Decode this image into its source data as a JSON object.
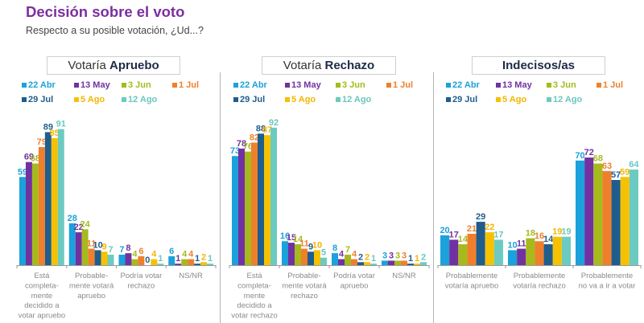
{
  "header": {
    "title": "Decisión sobre el voto",
    "subtitle": "Respecto a su posible votación, ¿Ud...?"
  },
  "series_colors": {
    "22 Abr": "#1ba1db",
    "13 May": "#7131a1",
    "3 Jun": "#a6ba1e",
    "1 Jul": "#f07f2b",
    "29 Jul": "#1f5d8d",
    "5 Ago": "#f6c100",
    "12 Ago": "#6ccbc0"
  },
  "panels": [
    {
      "title_normal": "Votaría ",
      "title_bold": "Apruebo"
    },
    {
      "title_normal": "Votaría ",
      "title_bold": "Rechazo"
    },
    {
      "title_normal": "",
      "title_bold": "Indecisos/as"
    }
  ],
  "chart_data": [
    {
      "type": "bar",
      "title": "Votaría Apruebo",
      "unit": "%",
      "categories": [
        "Está completamente decidido a votar apruebo",
        "Probablemente votará apruebo",
        "Podría votar rechazo",
        "NS/NR"
      ],
      "category_lines": [
        [
          "Está",
          "completa-",
          "mente",
          "decidido a",
          "votar apruebo"
        ],
        [
          "Probable-",
          "mente votará",
          "apruebo"
        ],
        [
          "Podría votar",
          "rechazo"
        ],
        [
          "NS/NR"
        ]
      ],
      "legend": "top",
      "ylim": [
        0,
        100
      ],
      "grid": false,
      "series": [
        {
          "name": "22 Abr",
          "values": [
            59,
            28,
            7,
            6
          ]
        },
        {
          "name": "13 May",
          "values": [
            69,
            22,
            8,
            1
          ]
        },
        {
          "name": "3 Jun",
          "values": [
            68,
            24,
            4,
            4
          ]
        },
        {
          "name": "1 Jul",
          "values": [
            79,
            11,
            6,
            4
          ]
        },
        {
          "name": "29 Jul",
          "values": [
            89,
            10,
            0,
            1
          ]
        },
        {
          "name": "5 Ago",
          "values": [
            85,
            9,
            4,
            2
          ]
        },
        {
          "name": "12 Ago",
          "values": [
            91,
            7,
            1,
            1
          ]
        }
      ]
    },
    {
      "type": "bar",
      "title": "Votaría Rechazo",
      "unit": "%",
      "categories": [
        "Está completamente decidido a votar rechazo",
        "Probablemente votará rechazo",
        "Podría votar apruebo",
        "NS/NR"
      ],
      "category_lines": [
        [
          "Está",
          "completa-",
          "mente",
          "decidido a",
          "votar rechazo"
        ],
        [
          "Probable-",
          "mente votará",
          "rechazo"
        ],
        [
          "Podría votar",
          "apruebo"
        ],
        [
          "NS/NR"
        ]
      ],
      "legend": "top",
      "ylim": [
        0,
        100
      ],
      "grid": false,
      "series": [
        {
          "name": "22 Abr",
          "values": [
            73,
            16,
            8,
            3
          ]
        },
        {
          "name": "13 May",
          "values": [
            78,
            15,
            4,
            3
          ]
        },
        {
          "name": "3 Jun",
          "values": [
            76,
            14,
            7,
            3
          ]
        },
        {
          "name": "1 Jul",
          "values": [
            82,
            11,
            4,
            3
          ]
        },
        {
          "name": "29 Jul",
          "values": [
            88,
            9,
            2,
            1
          ]
        },
        {
          "name": "5 Ago",
          "values": [
            87,
            10,
            2,
            1
          ]
        },
        {
          "name": "12 Ago",
          "values": [
            92,
            5,
            1,
            2
          ]
        }
      ]
    },
    {
      "type": "bar",
      "title": "Indecisos/as",
      "unit": "%",
      "categories": [
        "Probablemente votaría apruebo",
        "Probablemente votaría rechazo",
        "Probablemente no va a ir a votar"
      ],
      "category_lines": [
        [
          "Probablemente",
          "votaría apruebo"
        ],
        [
          "Probablemente",
          "votaría rechazo"
        ],
        [
          "Probablemente",
          "no va a ir a votar"
        ]
      ],
      "legend": "top",
      "ylim": [
        0,
        100
      ],
      "grid": false,
      "series": [
        {
          "name": "22 Abr",
          "values": [
            20,
            10,
            70
          ]
        },
        {
          "name": "13 May",
          "values": [
            17,
            11,
            72
          ]
        },
        {
          "name": "3 Jun",
          "values": [
            14,
            18,
            68
          ]
        },
        {
          "name": "1 Jul",
          "values": [
            21,
            16,
            63
          ]
        },
        {
          "name": "29 Jul",
          "values": [
            29,
            14,
            57
          ]
        },
        {
          "name": "5 Ago",
          "values": [
            22,
            19,
            59
          ]
        },
        {
          "name": "12 Ago",
          "values": [
            17,
            19,
            64
          ]
        }
      ]
    }
  ]
}
